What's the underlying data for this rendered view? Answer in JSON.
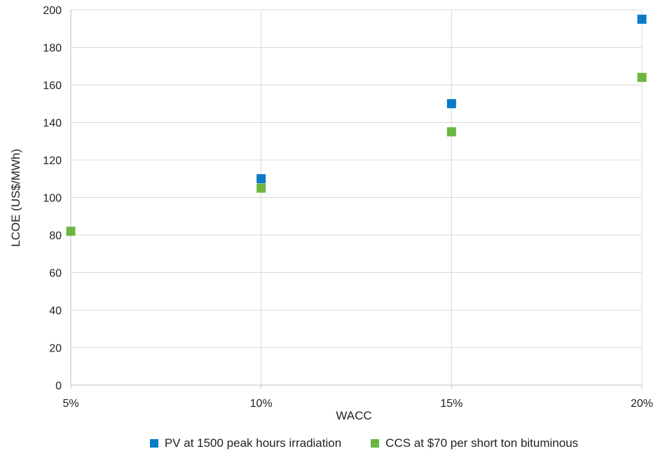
{
  "chart_data": {
    "type": "scatter",
    "title": "",
    "xlabel": "WACC",
    "ylabel": "LCOE (US$/MWh)",
    "categories": [
      "5%",
      "10%",
      "15%",
      "20%"
    ],
    "ylim": [
      0,
      200
    ],
    "yticks": [
      "0",
      "20",
      "40",
      "60",
      "80",
      "100",
      "120",
      "140",
      "160",
      "180",
      "200"
    ],
    "grid": true,
    "legend_position": "bottom",
    "series": [
      {
        "name": "PV at 1500 peak hours irradiation",
        "color": "#0a7bc4",
        "values": [
          null,
          110,
          150,
          195
        ]
      },
      {
        "name": "CCS at $70 per short ton bituminous",
        "color": "#6ab640",
        "values": [
          82,
          105,
          135,
          164
        ]
      }
    ]
  }
}
